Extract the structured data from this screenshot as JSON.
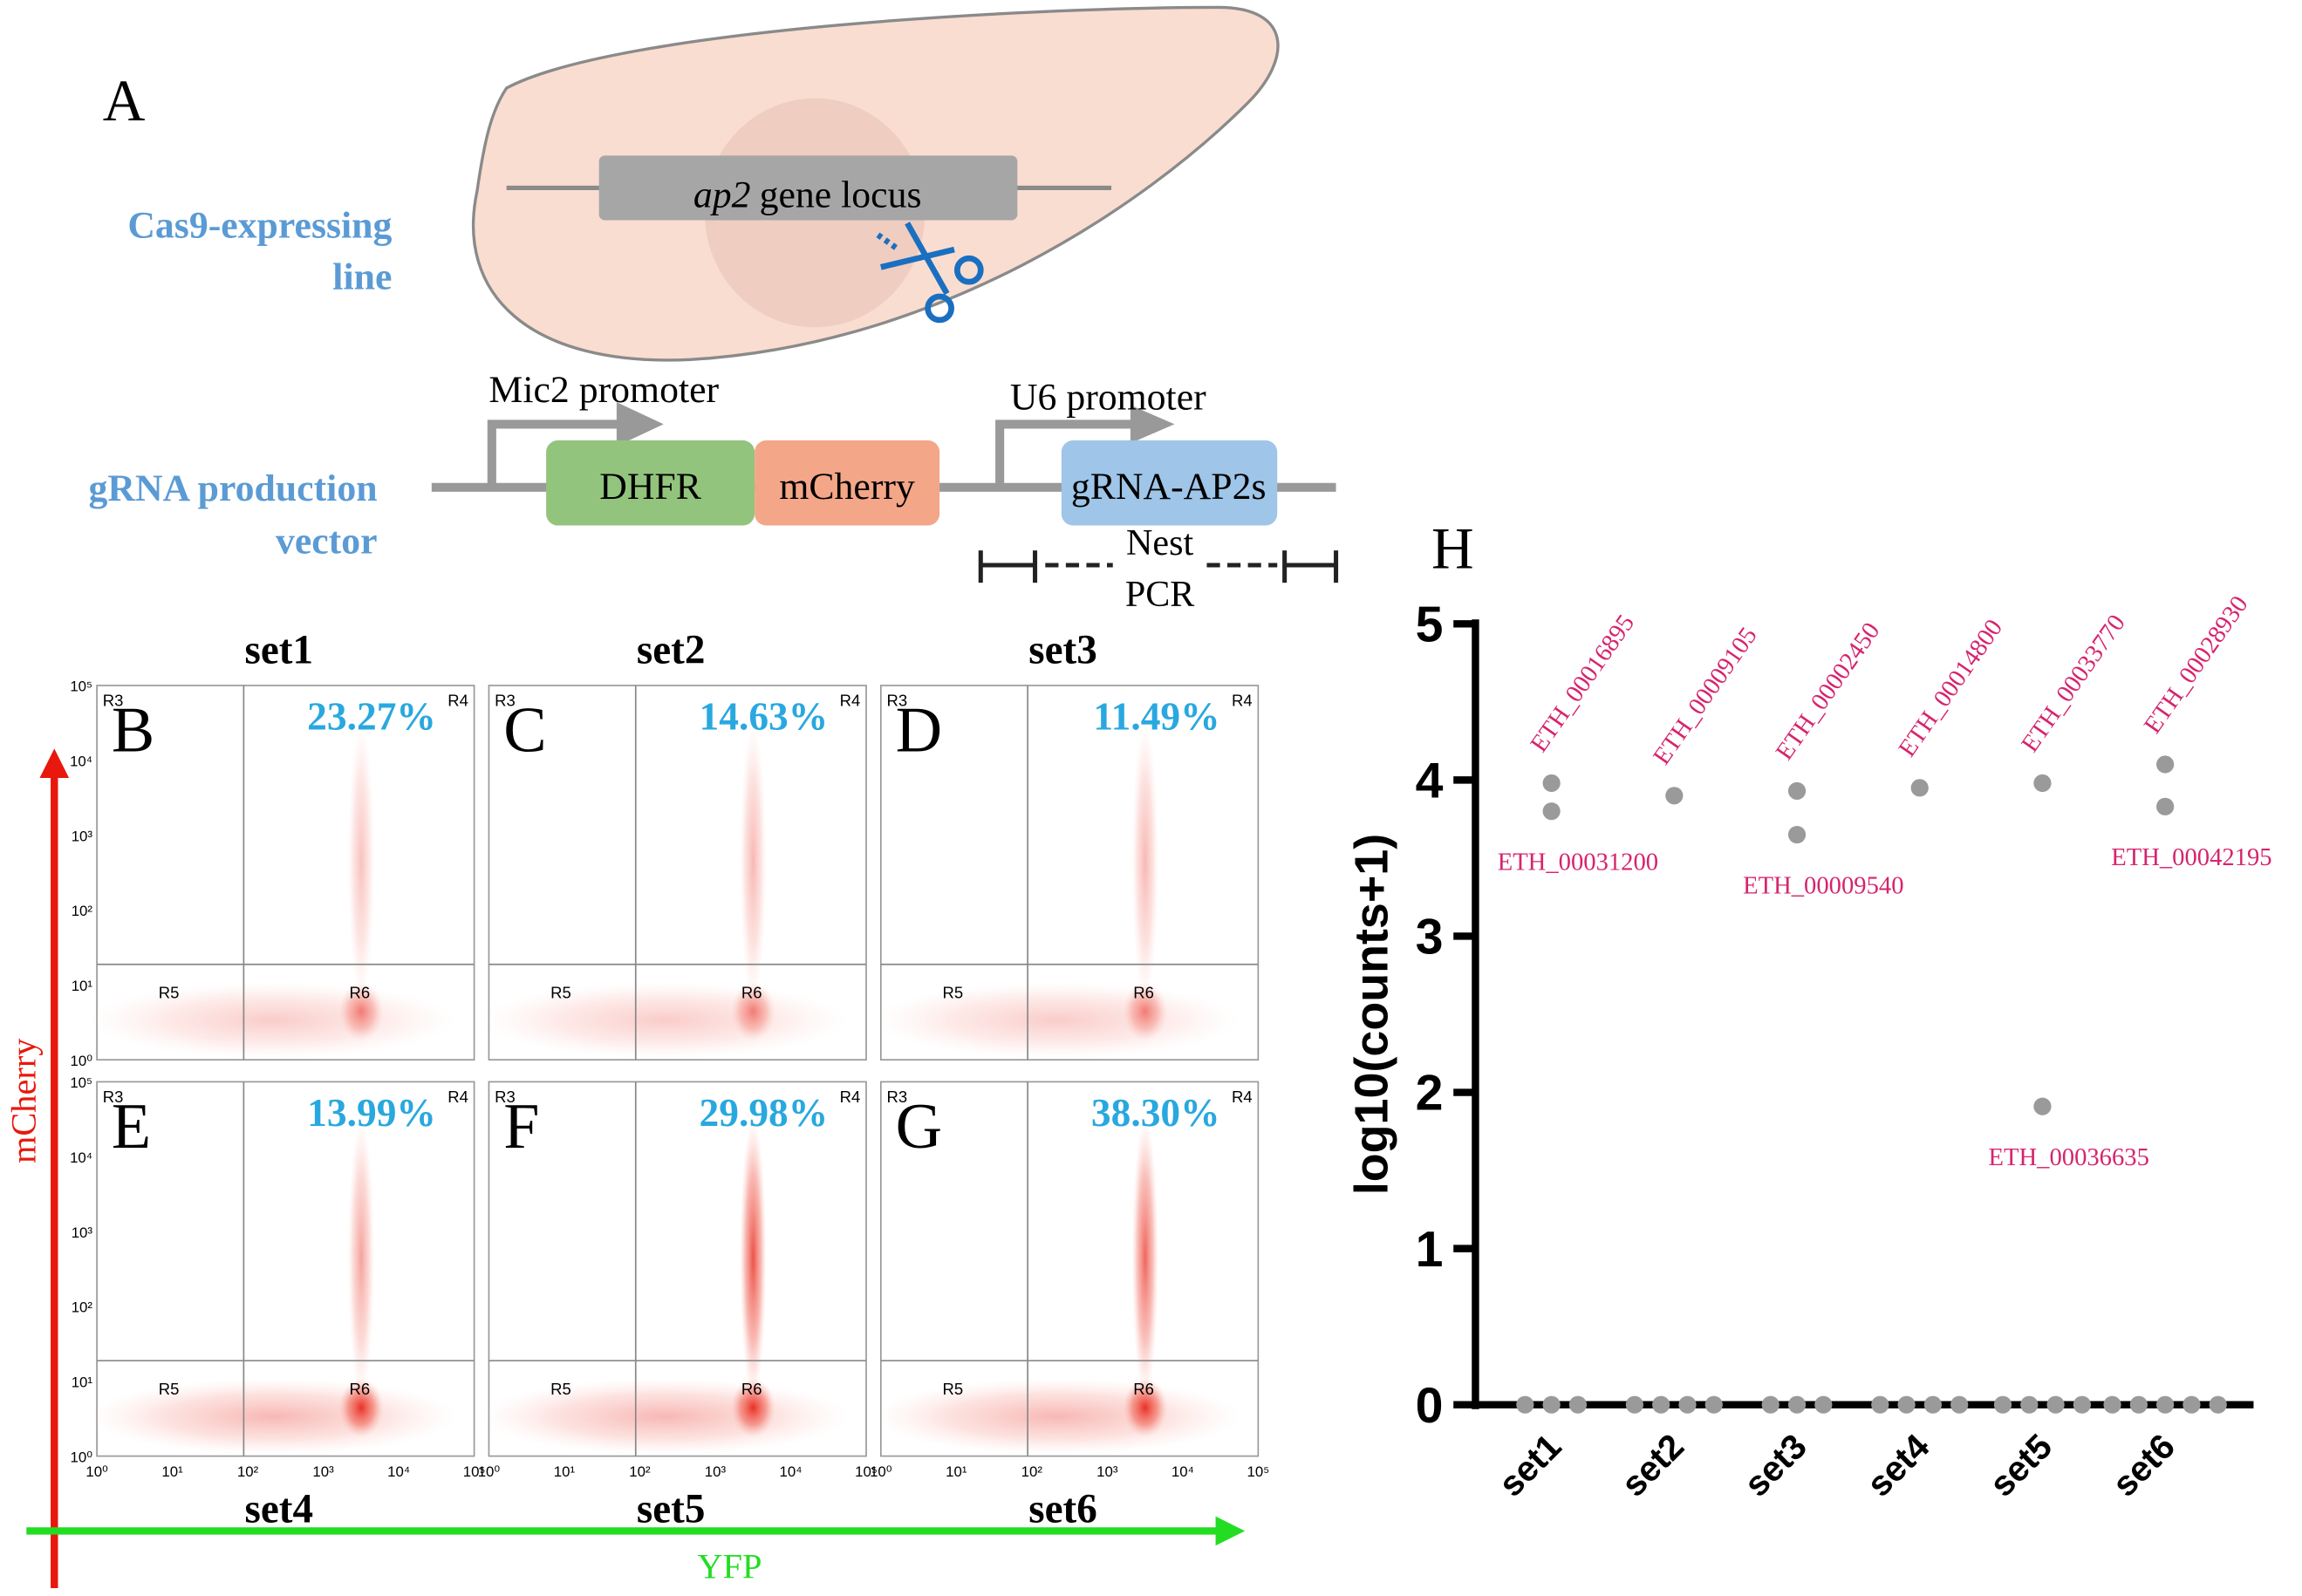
{
  "panel_a": {
    "label": "A",
    "cell_label": [
      "Cas9-expressing",
      "line"
    ],
    "locus": {
      "gene": "ap2",
      "text": "gene locus"
    },
    "vector_label": [
      "gRNA production",
      "vector"
    ],
    "promoters": [
      "Mic2 promoter",
      "U6 promoter"
    ],
    "boxes": [
      "DHFR",
      "mCherry",
      "gRNA-AP2s"
    ],
    "pcr": [
      "Nest",
      "PCR"
    ]
  },
  "flow": {
    "sets": [
      "set1",
      "set2",
      "set3",
      "set4",
      "set5",
      "set6"
    ],
    "y_axis": "mCherry",
    "x_axis": "YFP",
    "gates": [
      "R3",
      "R4",
      "R5",
      "R6"
    ],
    "ticks": [
      "10⁰",
      "10¹",
      "10²",
      "10³",
      "10⁴",
      "10⁵"
    ],
    "panels": [
      {
        "letter": "B",
        "percent": "23.27%"
      },
      {
        "letter": "C",
        "percent": "14.63%"
      },
      {
        "letter": "D",
        "percent": "11.49%"
      },
      {
        "letter": "E",
        "percent": "13.99%"
      },
      {
        "letter": "F",
        "percent": "29.98%"
      },
      {
        "letter": "G",
        "percent": "38.30%"
      }
    ]
  },
  "chart_data": {
    "type": "scatter",
    "label": "H",
    "ylabel": "log10(counts+1)",
    "categories": [
      "set1",
      "set2",
      "set3",
      "set4",
      "set5",
      "set6"
    ],
    "values": [
      [
        3.98,
        3.8,
        0,
        0,
        0
      ],
      [
        3.9,
        0,
        0,
        0,
        0
      ],
      [
        3.93,
        3.65,
        0,
        0,
        0
      ],
      [
        3.95,
        0,
        0,
        0,
        0
      ],
      [
        3.98,
        1.91,
        0,
        0,
        0,
        0
      ],
      [
        4.1,
        3.83,
        0,
        0,
        0,
        0,
        0
      ]
    ],
    "point_labels": [
      [
        "ETH_00016895",
        "ETH_00031200",
        null,
        null,
        null
      ],
      [
        "ETH_00009105",
        null,
        null,
        null,
        null
      ],
      [
        "ETH_00002450",
        "ETH_00009540",
        null,
        null,
        null
      ],
      [
        "ETH_00014800",
        null,
        null,
        null,
        null
      ],
      [
        "ETH_00033770",
        "ETH_00036635",
        null,
        null,
        null,
        null
      ],
      [
        "ETH_00028930",
        "ETH_00042195",
        null,
        null,
        null,
        null,
        null
      ]
    ],
    "color": "#9a9a9a",
    "label_color": "#d6246e",
    "ylim": [
      0,
      5
    ],
    "yticks": [
      0,
      1,
      2,
      3,
      4,
      5
    ]
  }
}
